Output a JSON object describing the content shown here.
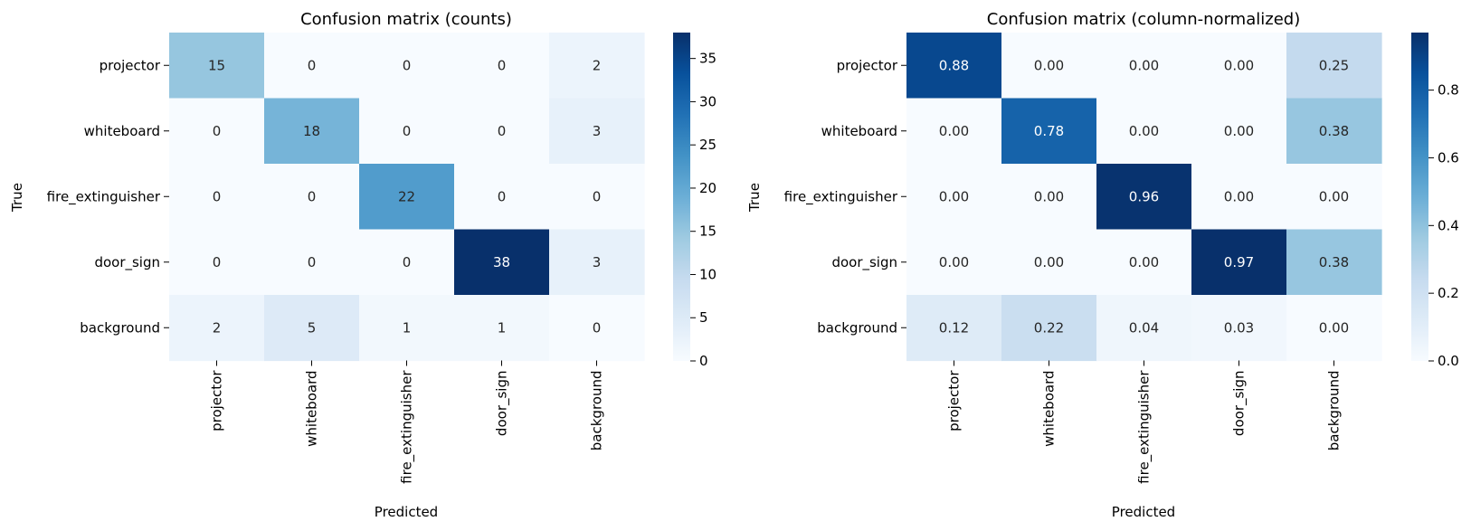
{
  "chart_data": [
    {
      "type": "heatmap",
      "title": "Confusion matrix (counts)",
      "xlabel": "Predicted",
      "ylabel": "True",
      "row_labels": [
        "projector",
        "whiteboard",
        "fire_extinguisher",
        "door_sign",
        "background"
      ],
      "col_labels": [
        "projector",
        "whiteboard",
        "fire_extinguisher",
        "door_sign",
        "background"
      ],
      "values": [
        [
          15,
          0,
          0,
          0,
          2
        ],
        [
          0,
          18,
          0,
          0,
          3
        ],
        [
          0,
          0,
          22,
          0,
          0
        ],
        [
          0,
          0,
          0,
          38,
          3
        ],
        [
          2,
          5,
          1,
          1,
          0
        ]
      ],
      "cell_labels": [
        [
          "15",
          "0",
          "0",
          "0",
          "2"
        ],
        [
          "0",
          "18",
          "0",
          "0",
          "3"
        ],
        [
          "0",
          "0",
          "22",
          "0",
          "0"
        ],
        [
          "0",
          "0",
          "0",
          "38",
          "3"
        ],
        [
          "2",
          "5",
          "1",
          "1",
          "0"
        ]
      ],
      "colormap": "Blues",
      "vmin": 0,
      "vmax": 38,
      "colorbar_ticks": [
        0,
        5,
        10,
        15,
        20,
        25,
        30,
        35
      ],
      "colorbar_tick_labels": [
        "0",
        "5",
        "10",
        "15",
        "20",
        "25",
        "30",
        "35"
      ]
    },
    {
      "type": "heatmap",
      "title": "Confusion matrix (column-normalized)",
      "xlabel": "Predicted",
      "ylabel": "True",
      "row_labels": [
        "projector",
        "whiteboard",
        "fire_extinguisher",
        "door_sign",
        "background"
      ],
      "col_labels": [
        "projector",
        "whiteboard",
        "fire_extinguisher",
        "door_sign",
        "background"
      ],
      "values": [
        [
          0.88,
          0.0,
          0.0,
          0.0,
          0.25
        ],
        [
          0.0,
          0.78,
          0.0,
          0.0,
          0.38
        ],
        [
          0.0,
          0.0,
          0.96,
          0.0,
          0.0
        ],
        [
          0.0,
          0.0,
          0.0,
          0.97,
          0.38
        ],
        [
          0.12,
          0.22,
          0.04,
          0.03,
          0.0
        ]
      ],
      "cell_labels": [
        [
          "0.88",
          "0.00",
          "0.00",
          "0.00",
          "0.25"
        ],
        [
          "0.00",
          "0.78",
          "0.00",
          "0.00",
          "0.38"
        ],
        [
          "0.00",
          "0.00",
          "0.96",
          "0.00",
          "0.00"
        ],
        [
          "0.00",
          "0.00",
          "0.00",
          "0.97",
          "0.38"
        ],
        [
          "0.12",
          "0.22",
          "0.04",
          "0.03",
          "0.00"
        ]
      ],
      "colormap": "Blues",
      "vmin": 0,
      "vmax": 0.97,
      "colorbar_ticks": [
        0.0,
        0.2,
        0.4,
        0.6,
        0.8
      ],
      "colorbar_tick_labels": [
        "0.0",
        "0.2",
        "0.4",
        "0.6",
        "0.8"
      ]
    }
  ]
}
